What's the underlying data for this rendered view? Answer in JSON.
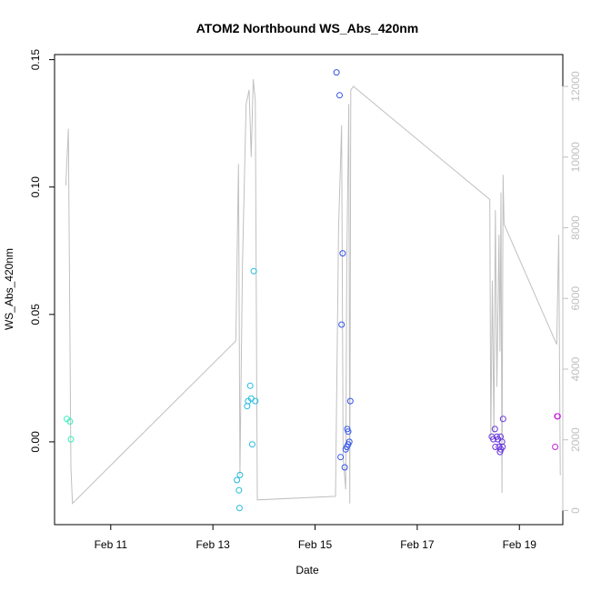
{
  "chart_data": {
    "type": "scatter",
    "title": "ATOM2 Northbound WS_Abs_420nm",
    "xlabel": "Date",
    "ylabel": "WS_Abs_420nm",
    "x_unit": "days in February",
    "xlim": [
      9.9,
      19.85
    ],
    "ylim": [
      -0.0325,
      0.152
    ],
    "y2lim": [
      -400,
      12900
    ],
    "x_ticks": [
      {
        "value": 11,
        "label": "Feb 11"
      },
      {
        "value": 13,
        "label": "Feb 13"
      },
      {
        "value": 15,
        "label": "Feb 15"
      },
      {
        "value": 17,
        "label": "Feb 17"
      },
      {
        "value": 19,
        "label": "Feb 19"
      }
    ],
    "y_ticks": [
      {
        "value": 0.0,
        "label": "0.00"
      },
      {
        "value": 0.05,
        "label": "0.05"
      },
      {
        "value": 0.1,
        "label": "0.10"
      },
      {
        "value": 0.15,
        "label": "0.15"
      }
    ],
    "y2_ticks": [
      {
        "value": 0,
        "label": "0"
      },
      {
        "value": 2000,
        "label": "2000"
      },
      {
        "value": 4000,
        "label": "4000"
      },
      {
        "value": 6000,
        "label": "6000"
      },
      {
        "value": 8000,
        "label": "8000"
      },
      {
        "value": 10000,
        "label": "10000"
      },
      {
        "value": 12000,
        "label": "12000"
      }
    ],
    "points": [
      {
        "x": 10.14,
        "y": 0.009,
        "color": "#33eebb"
      },
      {
        "x": 10.2,
        "y": 0.008,
        "color": "#33eebb"
      },
      {
        "x": 10.22,
        "y": 0.001,
        "color": "#33eebb"
      },
      {
        "x": 13.47,
        "y": -0.015,
        "color": "#22bbdd"
      },
      {
        "x": 13.51,
        "y": -0.019,
        "color": "#22bbdd"
      },
      {
        "x": 13.53,
        "y": -0.013,
        "color": "#22bbdd"
      },
      {
        "x": 13.52,
        "y": -0.026,
        "color": "#22bbdd"
      },
      {
        "x": 13.67,
        "y": 0.014,
        "color": "#22bbdd"
      },
      {
        "x": 13.69,
        "y": 0.016,
        "color": "#22bbdd"
      },
      {
        "x": 13.73,
        "y": 0.022,
        "color": "#22bbdd"
      },
      {
        "x": 13.75,
        "y": 0.017,
        "color": "#22bbdd"
      },
      {
        "x": 13.77,
        "y": -0.001,
        "color": "#22bbdd"
      },
      {
        "x": 13.8,
        "y": 0.067,
        "color": "#22bbdd"
      },
      {
        "x": 13.83,
        "y": 0.016,
        "color": "#22bbdd"
      },
      {
        "x": 15.42,
        "y": 0.145,
        "color": "#3355ee"
      },
      {
        "x": 15.48,
        "y": 0.136,
        "color": "#3355ee"
      },
      {
        "x": 15.54,
        "y": 0.074,
        "color": "#3355ee"
      },
      {
        "x": 15.52,
        "y": 0.046,
        "color": "#3355ee"
      },
      {
        "x": 15.5,
        "y": -0.006,
        "color": "#3355ee"
      },
      {
        "x": 15.58,
        "y": -0.01,
        "color": "#3355ee"
      },
      {
        "x": 15.6,
        "y": -0.003,
        "color": "#3355ee"
      },
      {
        "x": 15.62,
        "y": -0.002,
        "color": "#3355ee"
      },
      {
        "x": 15.63,
        "y": 0.005,
        "color": "#3355ee"
      },
      {
        "x": 15.65,
        "y": 0.004,
        "color": "#3355ee"
      },
      {
        "x": 15.65,
        "y": -0.001,
        "color": "#3355ee"
      },
      {
        "x": 15.67,
        "y": 0.0,
        "color": "#3355ee"
      },
      {
        "x": 15.69,
        "y": 0.016,
        "color": "#3355ee"
      },
      {
        "x": 18.46,
        "y": 0.002,
        "color": "#6633dd"
      },
      {
        "x": 18.49,
        "y": 0.001,
        "color": "#6633dd"
      },
      {
        "x": 18.52,
        "y": 0.005,
        "color": "#6633dd"
      },
      {
        "x": 18.53,
        "y": -0.002,
        "color": "#6633dd"
      },
      {
        "x": 18.56,
        "y": 0.002,
        "color": "#6633dd"
      },
      {
        "x": 18.58,
        "y": 0.001,
        "color": "#6633dd"
      },
      {
        "x": 18.6,
        "y": -0.002,
        "color": "#6633dd"
      },
      {
        "x": 18.62,
        "y": -0.004,
        "color": "#6633dd"
      },
      {
        "x": 18.63,
        "y": 0.002,
        "color": "#6633dd"
      },
      {
        "x": 18.64,
        "y": -0.003,
        "color": "#6633dd"
      },
      {
        "x": 18.66,
        "y": 0.0,
        "color": "#6633dd"
      },
      {
        "x": 18.67,
        "y": -0.002,
        "color": "#6633dd"
      },
      {
        "x": 18.68,
        "y": 0.009,
        "color": "#6633dd"
      },
      {
        "x": 19.7,
        "y": -0.002,
        "color": "#cc22dd"
      },
      {
        "x": 19.74,
        "y": 0.01,
        "color": "#cc22dd"
      },
      {
        "x": 19.75,
        "y": 0.01,
        "color": "#cc22dd"
      }
    ],
    "secondary_line": {
      "color": "#c0c0c0",
      "axis": "right",
      "points": [
        [
          10.12,
          9200
        ],
        [
          10.17,
          10800
        ],
        [
          10.2,
          5000
        ],
        [
          10.22,
          1200
        ],
        [
          10.25,
          200
        ],
        [
          13.45,
          4800
        ],
        [
          13.5,
          9800
        ],
        [
          13.53,
          1000
        ],
        [
          13.58,
          7000
        ],
        [
          13.65,
          11500
        ],
        [
          13.71,
          11900
        ],
        [
          13.75,
          10000
        ],
        [
          13.79,
          12200
        ],
        [
          13.83,
          11600
        ],
        [
          13.87,
          300
        ],
        [
          15.4,
          400
        ],
        [
          15.46,
          8000
        ],
        [
          15.52,
          10900
        ],
        [
          15.55,
          1500
        ],
        [
          15.6,
          600
        ],
        [
          15.62,
          7000
        ],
        [
          15.66,
          11500
        ],
        [
          15.68,
          200
        ],
        [
          15.7,
          11900
        ],
        [
          15.75,
          12000
        ],
        [
          18.42,
          8800
        ],
        [
          18.44,
          2000
        ],
        [
          18.47,
          6500
        ],
        [
          18.5,
          2200
        ],
        [
          18.53,
          8500
        ],
        [
          18.56,
          3500
        ],
        [
          18.6,
          7800
        ],
        [
          18.62,
          4500
        ],
        [
          18.64,
          9000
        ],
        [
          18.66,
          500
        ],
        [
          18.68,
          9500
        ],
        [
          18.7,
          8100
        ],
        [
          19.73,
          4700
        ],
        [
          19.77,
          7800
        ],
        [
          19.8,
          1000
        ]
      ]
    }
  }
}
